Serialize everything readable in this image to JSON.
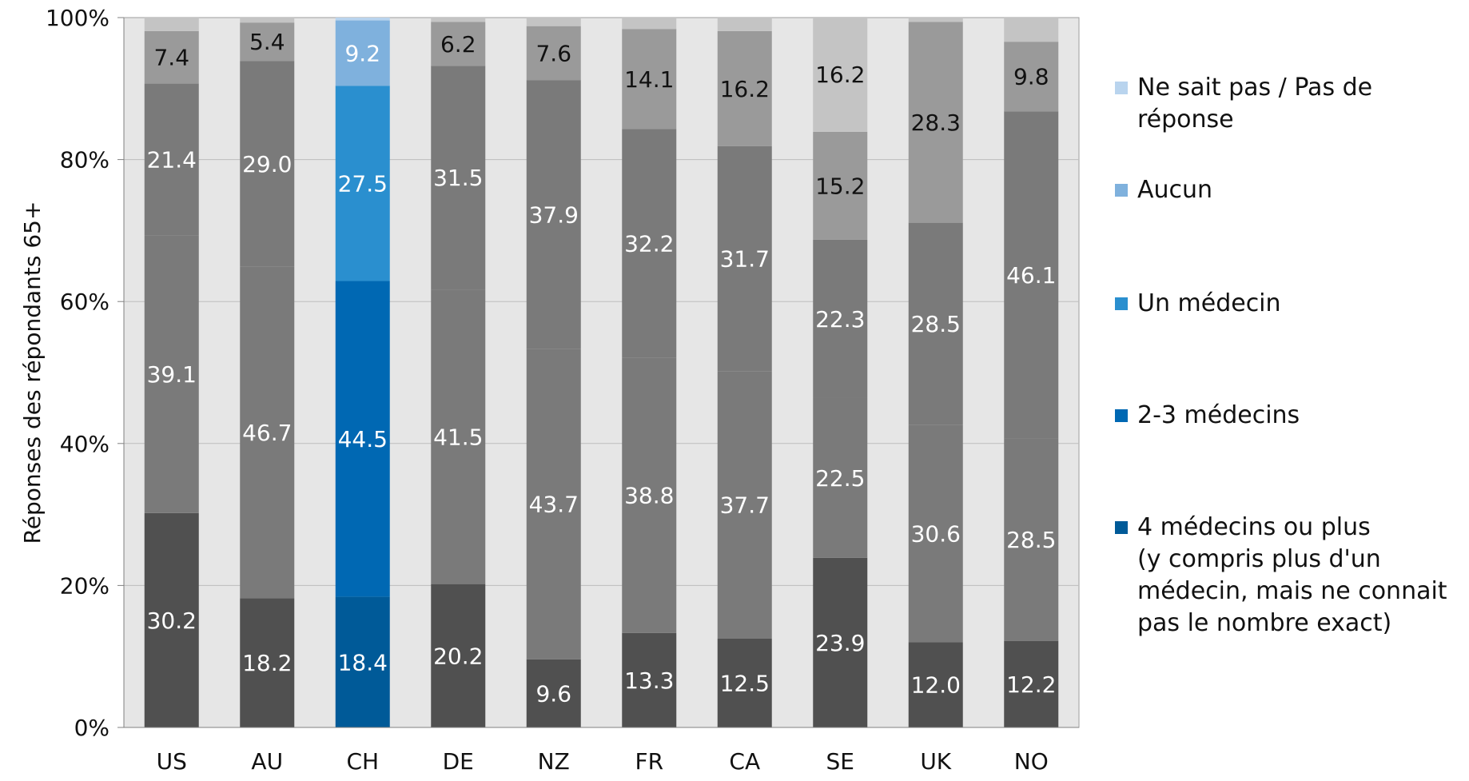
{
  "colors": {
    "background": "#ffffff",
    "plot_background": "#e6e6e6",
    "grid": "#bdbdbd",
    "dark_gray": "#505050",
    "mid_gray": "#7a7a7a",
    "light_gray": "#9a9a9a",
    "very_light_gray": "#c4c4c4",
    "ch_4plus": "#005a98",
    "ch_2_3": "#0068b3",
    "ch_un": "#2a8fcf",
    "ch_aucun": "#7fb1dd",
    "ch_nesaitpas": "#b9d4ee"
  },
  "legend": {
    "items": [
      {
        "label": "Ne sait pas / Pas de réponse",
        "color": "#b9d4ee"
      },
      {
        "label": "Aucun",
        "color": "#7fb1dd"
      },
      {
        "label": "Un médecin",
        "color": "#2a8fcf"
      },
      {
        "label": "2-3 médecins",
        "color": "#0068b3"
      },
      {
        "label": "4 médecins ou plus\n(y compris plus d'un\nmédecin, mais ne connait\npas le nombre exact)",
        "color": "#005a98"
      }
    ]
  },
  "chart_data": {
    "type": "bar",
    "stacked": true,
    "title": "",
    "xlabel": "",
    "ylabel": "Réponses des répondants 65+",
    "ylim": [
      0,
      100
    ],
    "yticks": [
      "0%",
      "20%",
      "40%",
      "60%",
      "80%",
      "100%"
    ],
    "categories": [
      "US",
      "AU",
      "CH",
      "DE",
      "NZ",
      "FR",
      "CA",
      "SE",
      "UK",
      "NO"
    ],
    "series": [
      {
        "name": "4 médecins ou plus (y compris plus d'un médecin, mais ne connait pas le nombre exact)",
        "values": [
          30.2,
          18.2,
          18.4,
          20.2,
          9.6,
          13.3,
          12.5,
          23.9,
          12.0,
          12.2
        ]
      },
      {
        "name": "2-3 médecins",
        "values": [
          39.1,
          46.7,
          44.5,
          41.5,
          43.7,
          38.8,
          37.7,
          22.5,
          30.6,
          28.5
        ]
      },
      {
        "name": "Un médecin",
        "values": [
          21.4,
          29.0,
          27.5,
          31.5,
          37.9,
          32.2,
          31.7,
          22.3,
          28.5,
          46.1
        ]
      },
      {
        "name": "Aucun",
        "values": [
          7.4,
          5.4,
          9.2,
          6.2,
          7.6,
          14.1,
          16.2,
          15.2,
          28.3,
          9.8
        ]
      },
      {
        "name": "Ne sait pas / Pas de réponse",
        "values": [
          1.9,
          0.7,
          0.4,
          0.6,
          1.2,
          1.6,
          1.9,
          16.2,
          0.6,
          3.4
        ]
      }
    ],
    "data_labels": [
      [
        "30.2",
        "18.2",
        "18.4",
        "20.2",
        "9.6",
        "13.3",
        "12.5",
        "23.9",
        "12.0",
        "12.2"
      ],
      [
        "39.1",
        "46.7",
        "44.5",
        "41.5",
        "43.7",
        "38.8",
        "37.7",
        "22.5",
        "30.6",
        "28.5"
      ],
      [
        "21.4",
        "29.0",
        "27.5",
        "31.5",
        "37.9",
        "32.2",
        "31.7",
        "22.3",
        "28.5",
        "46.1"
      ],
      [
        "7.4",
        "5.4",
        "9.2",
        "6.2",
        "7.6",
        "14.1",
        "16.2",
        "15.2",
        "28.3",
        "9.8"
      ],
      [
        "",
        "",
        "",
        "",
        "",
        "",
        "",
        "16.2",
        "",
        ""
      ]
    ],
    "grid": true,
    "legend_position": "right"
  }
}
